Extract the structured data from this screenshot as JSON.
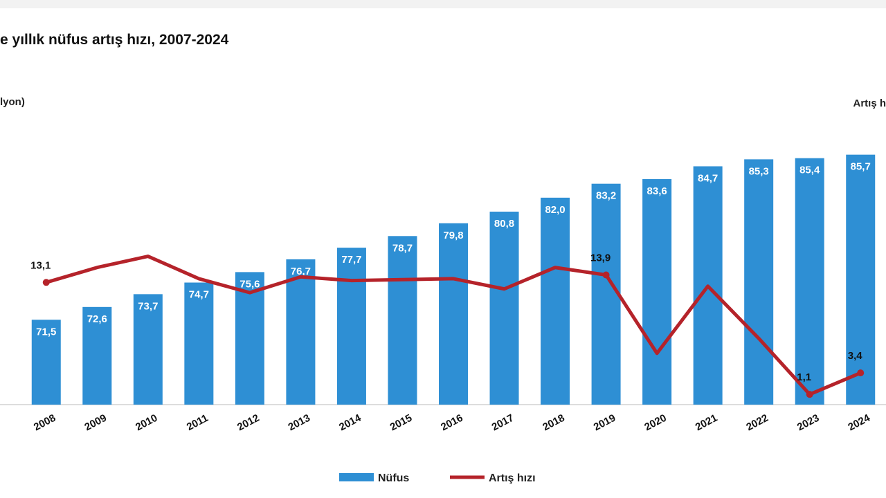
{
  "chart_data": {
    "type": "bar-line",
    "title": "e yıllık nüfus artış hızı, 2007-2024",
    "y_label": "lyon)",
    "y2_label": "Artış h",
    "categories": [
      "2008",
      "2009",
      "2010",
      "2011",
      "2012",
      "2013",
      "2014",
      "2015",
      "2016",
      "2017",
      "2018",
      "2019",
      "2020",
      "2021",
      "2022",
      "2023",
      "2024"
    ],
    "series": [
      {
        "name": "Nüfus",
        "kind": "bar",
        "color": "#2e8fd4",
        "values": [
          71.5,
          72.6,
          73.7,
          74.7,
          75.6,
          76.7,
          77.7,
          78.7,
          79.8,
          80.8,
          82.0,
          83.2,
          83.6,
          84.7,
          85.3,
          85.4,
          85.7
        ],
        "value_labels": [
          "71,5",
          "72,6",
          "73,7",
          "74,7",
          "75,6",
          "76,7",
          "77,7",
          "78,7",
          "79,8",
          "80,8",
          "82,0",
          "83,2",
          "83,6",
          "84,7",
          "85,3",
          "85,4",
          "85,7"
        ]
      },
      {
        "name": "Artış hızı",
        "kind": "line",
        "axis": "y2",
        "color": "#b5232a",
        "values": [
          13.1,
          14.7,
          15.9,
          13.5,
          12.0,
          13.7,
          13.3,
          13.4,
          13.5,
          12.4,
          14.7,
          13.9,
          5.5,
          12.7,
          7.1,
          1.1,
          3.4
        ],
        "value_labels": [
          "13,1",
          null,
          null,
          null,
          null,
          null,
          null,
          null,
          null,
          null,
          null,
          "13,9",
          null,
          null,
          null,
          "1,1",
          "3,4"
        ]
      }
    ],
    "ylim": [
      64.2,
      90.2
    ],
    "y2lim": [
      0,
      32.4
    ],
    "legend": "bottom"
  }
}
